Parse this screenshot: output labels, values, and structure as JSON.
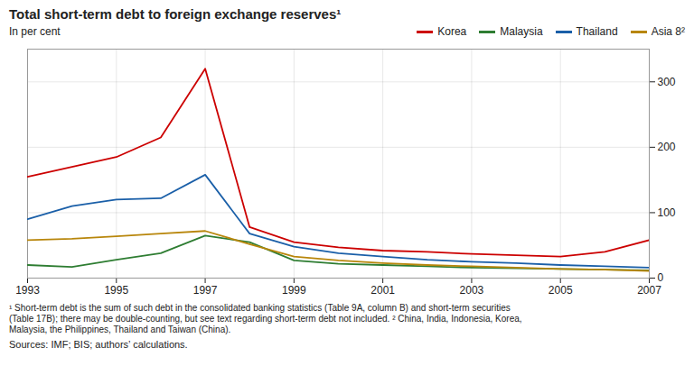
{
  "chart_data": {
    "type": "line",
    "title": "Total short-term debt to foreign exchange reserves¹",
    "ylabel": "In per cent",
    "footnote": "¹ Short-term debt is the sum of such debt in the consolidated banking statistics (Table 9A, column B) and short-term securities\n(Table 17B); there may be double-counting, but see text regarding short-term debt not included.   ² China, India, Indonesia, Korea,\nMalaysia, the Philippines, Thailand and Taiwan (China).",
    "source": "Sources: IMF; BIS; authors’ calculations.",
    "x": [
      1993,
      1994,
      1995,
      1996,
      1997,
      1998,
      1999,
      2000,
      2001,
      2002,
      2003,
      2004,
      2005,
      2006,
      2007
    ],
    "series": [
      {
        "name": "Korea",
        "color": "#cc0000",
        "values": [
          155,
          170,
          185,
          215,
          320,
          78,
          55,
          47,
          42,
          40,
          37,
          35,
          33,
          40,
          58
        ]
      },
      {
        "name": "Malaysia",
        "color": "#2e7d32",
        "values": [
          20,
          17,
          28,
          38,
          65,
          55,
          27,
          22,
          20,
          18,
          16,
          15,
          14,
          13,
          12
        ]
      },
      {
        "name": "Thailand",
        "color": "#1a5fa8",
        "values": [
          90,
          110,
          120,
          122,
          158,
          68,
          48,
          38,
          33,
          28,
          25,
          23,
          20,
          18,
          16
        ]
      },
      {
        "name": "Asia 8²",
        "color": "#b8860b",
        "values": [
          58,
          60,
          64,
          68,
          72,
          52,
          33,
          27,
          23,
          20,
          18,
          16,
          14,
          13,
          11
        ]
      }
    ],
    "xlim": [
      1993,
      2007
    ],
    "xticks": [
      1993,
      1995,
      1997,
      1999,
      2001,
      2003,
      2005,
      2007
    ],
    "ylim": [
      0,
      350
    ],
    "yticks": [
      0,
      100,
      200,
      300
    ],
    "grid": true,
    "legend": "upper right"
  }
}
